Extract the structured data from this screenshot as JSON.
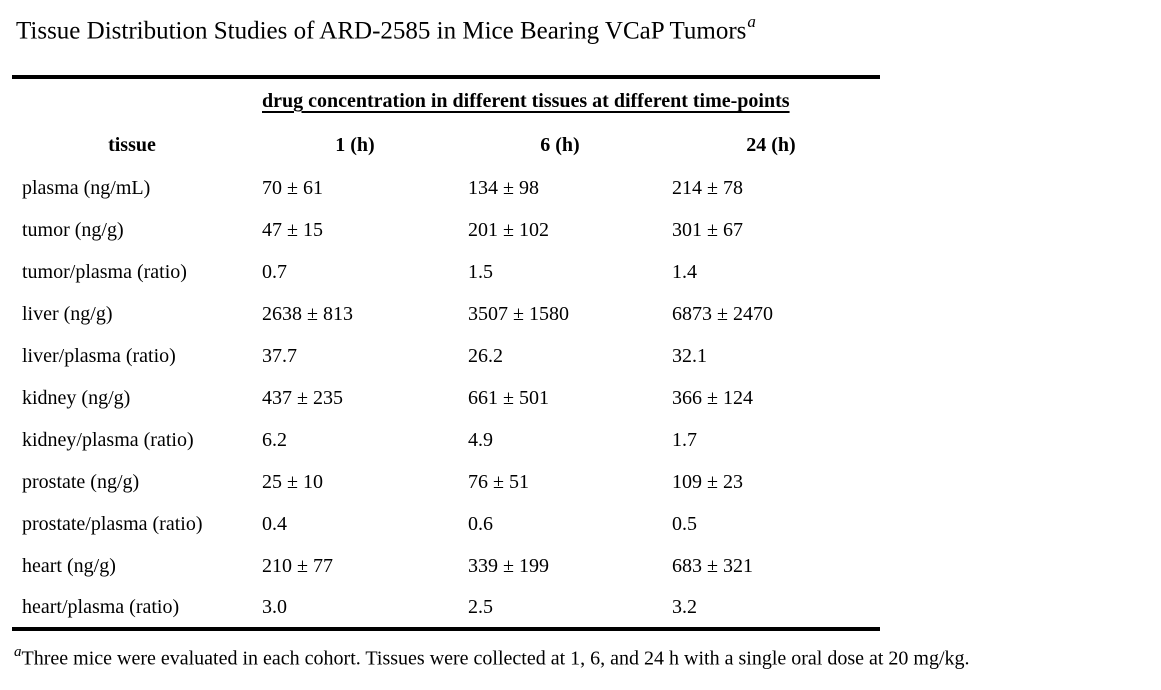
{
  "title": {
    "text": "Tissue Distribution Studies of ARD-2585 in Mice Bearing VCaP Tumors",
    "superscript": "a"
  },
  "table": {
    "span_header": "drug concentration in different tissues at different time-points",
    "columns": [
      "tissue",
      "1 (h)",
      "6 (h)",
      "24 (h)"
    ],
    "rows": [
      [
        "plasma (ng/mL)",
        "70 ± 61",
        "134 ± 98",
        "214 ± 78"
      ],
      [
        "tumor (ng/g)",
        "47 ± 15",
        "201 ± 102",
        "301 ± 67"
      ],
      [
        "tumor/plasma (ratio)",
        "0.7",
        "1.5",
        "1.4"
      ],
      [
        "liver (ng/g)",
        "2638 ± 813",
        "3507 ± 1580",
        "6873 ± 2470"
      ],
      [
        "liver/plasma (ratio)",
        "37.7",
        "26.2",
        "32.1"
      ],
      [
        "kidney (ng/g)",
        "437 ± 235",
        "661 ± 501",
        "366 ± 124"
      ],
      [
        "kidney/plasma (ratio)",
        "6.2",
        "4.9",
        "1.7"
      ],
      [
        "prostate (ng/g)",
        "25 ± 10",
        "76 ± 51",
        "109 ± 23"
      ],
      [
        "prostate/plasma (ratio)",
        "0.4",
        "0.6",
        "0.5"
      ],
      [
        "heart (ng/g)",
        "210 ± 77",
        "339 ± 199",
        "683 ± 321"
      ],
      [
        "heart/plasma (ratio)",
        "3.0",
        "2.5",
        "3.2"
      ]
    ]
  },
  "footnote": {
    "marker": "a",
    "text": "Three mice were evaluated in each cohort. Tissues were collected at 1, 6, and 24 h with a single oral dose at 20 mg/kg."
  },
  "chart_data": {
    "type": "table",
    "title": "Tissue Distribution Studies of ARD-2585 in Mice Bearing VCaP Tumors",
    "categories": [
      "1 (h)",
      "6 (h)",
      "24 (h)"
    ],
    "series": [
      {
        "name": "plasma (ng/mL)",
        "values": [
          70,
          134,
          214
        ],
        "sd": [
          61,
          98,
          78
        ]
      },
      {
        "name": "tumor (ng/g)",
        "values": [
          47,
          201,
          301
        ],
        "sd": [
          15,
          102,
          67
        ]
      },
      {
        "name": "tumor/plasma (ratio)",
        "values": [
          0.7,
          1.5,
          1.4
        ]
      },
      {
        "name": "liver (ng/g)",
        "values": [
          2638,
          3507,
          6873
        ],
        "sd": [
          813,
          1580,
          2470
        ]
      },
      {
        "name": "liver/plasma (ratio)",
        "values": [
          37.7,
          26.2,
          32.1
        ]
      },
      {
        "name": "kidney (ng/g)",
        "values": [
          437,
          661,
          366
        ],
        "sd": [
          235,
          501,
          124
        ]
      },
      {
        "name": "kidney/plasma (ratio)",
        "values": [
          6.2,
          4.9,
          1.7
        ]
      },
      {
        "name": "prostate (ng/g)",
        "values": [
          25,
          76,
          109
        ],
        "sd": [
          10,
          51,
          23
        ]
      },
      {
        "name": "prostate/plasma (ratio)",
        "values": [
          0.4,
          0.6,
          0.5
        ]
      },
      {
        "name": "heart (ng/g)",
        "values": [
          210,
          339,
          683
        ],
        "sd": [
          77,
          199,
          321
        ]
      },
      {
        "name": "heart/plasma (ratio)",
        "values": [
          3.0,
          2.5,
          3.2
        ]
      }
    ],
    "footnote": "Three mice were evaluated in each cohort. Tissues were collected at 1, 6, and 24 h with a single oral dose at 20 mg/kg."
  }
}
